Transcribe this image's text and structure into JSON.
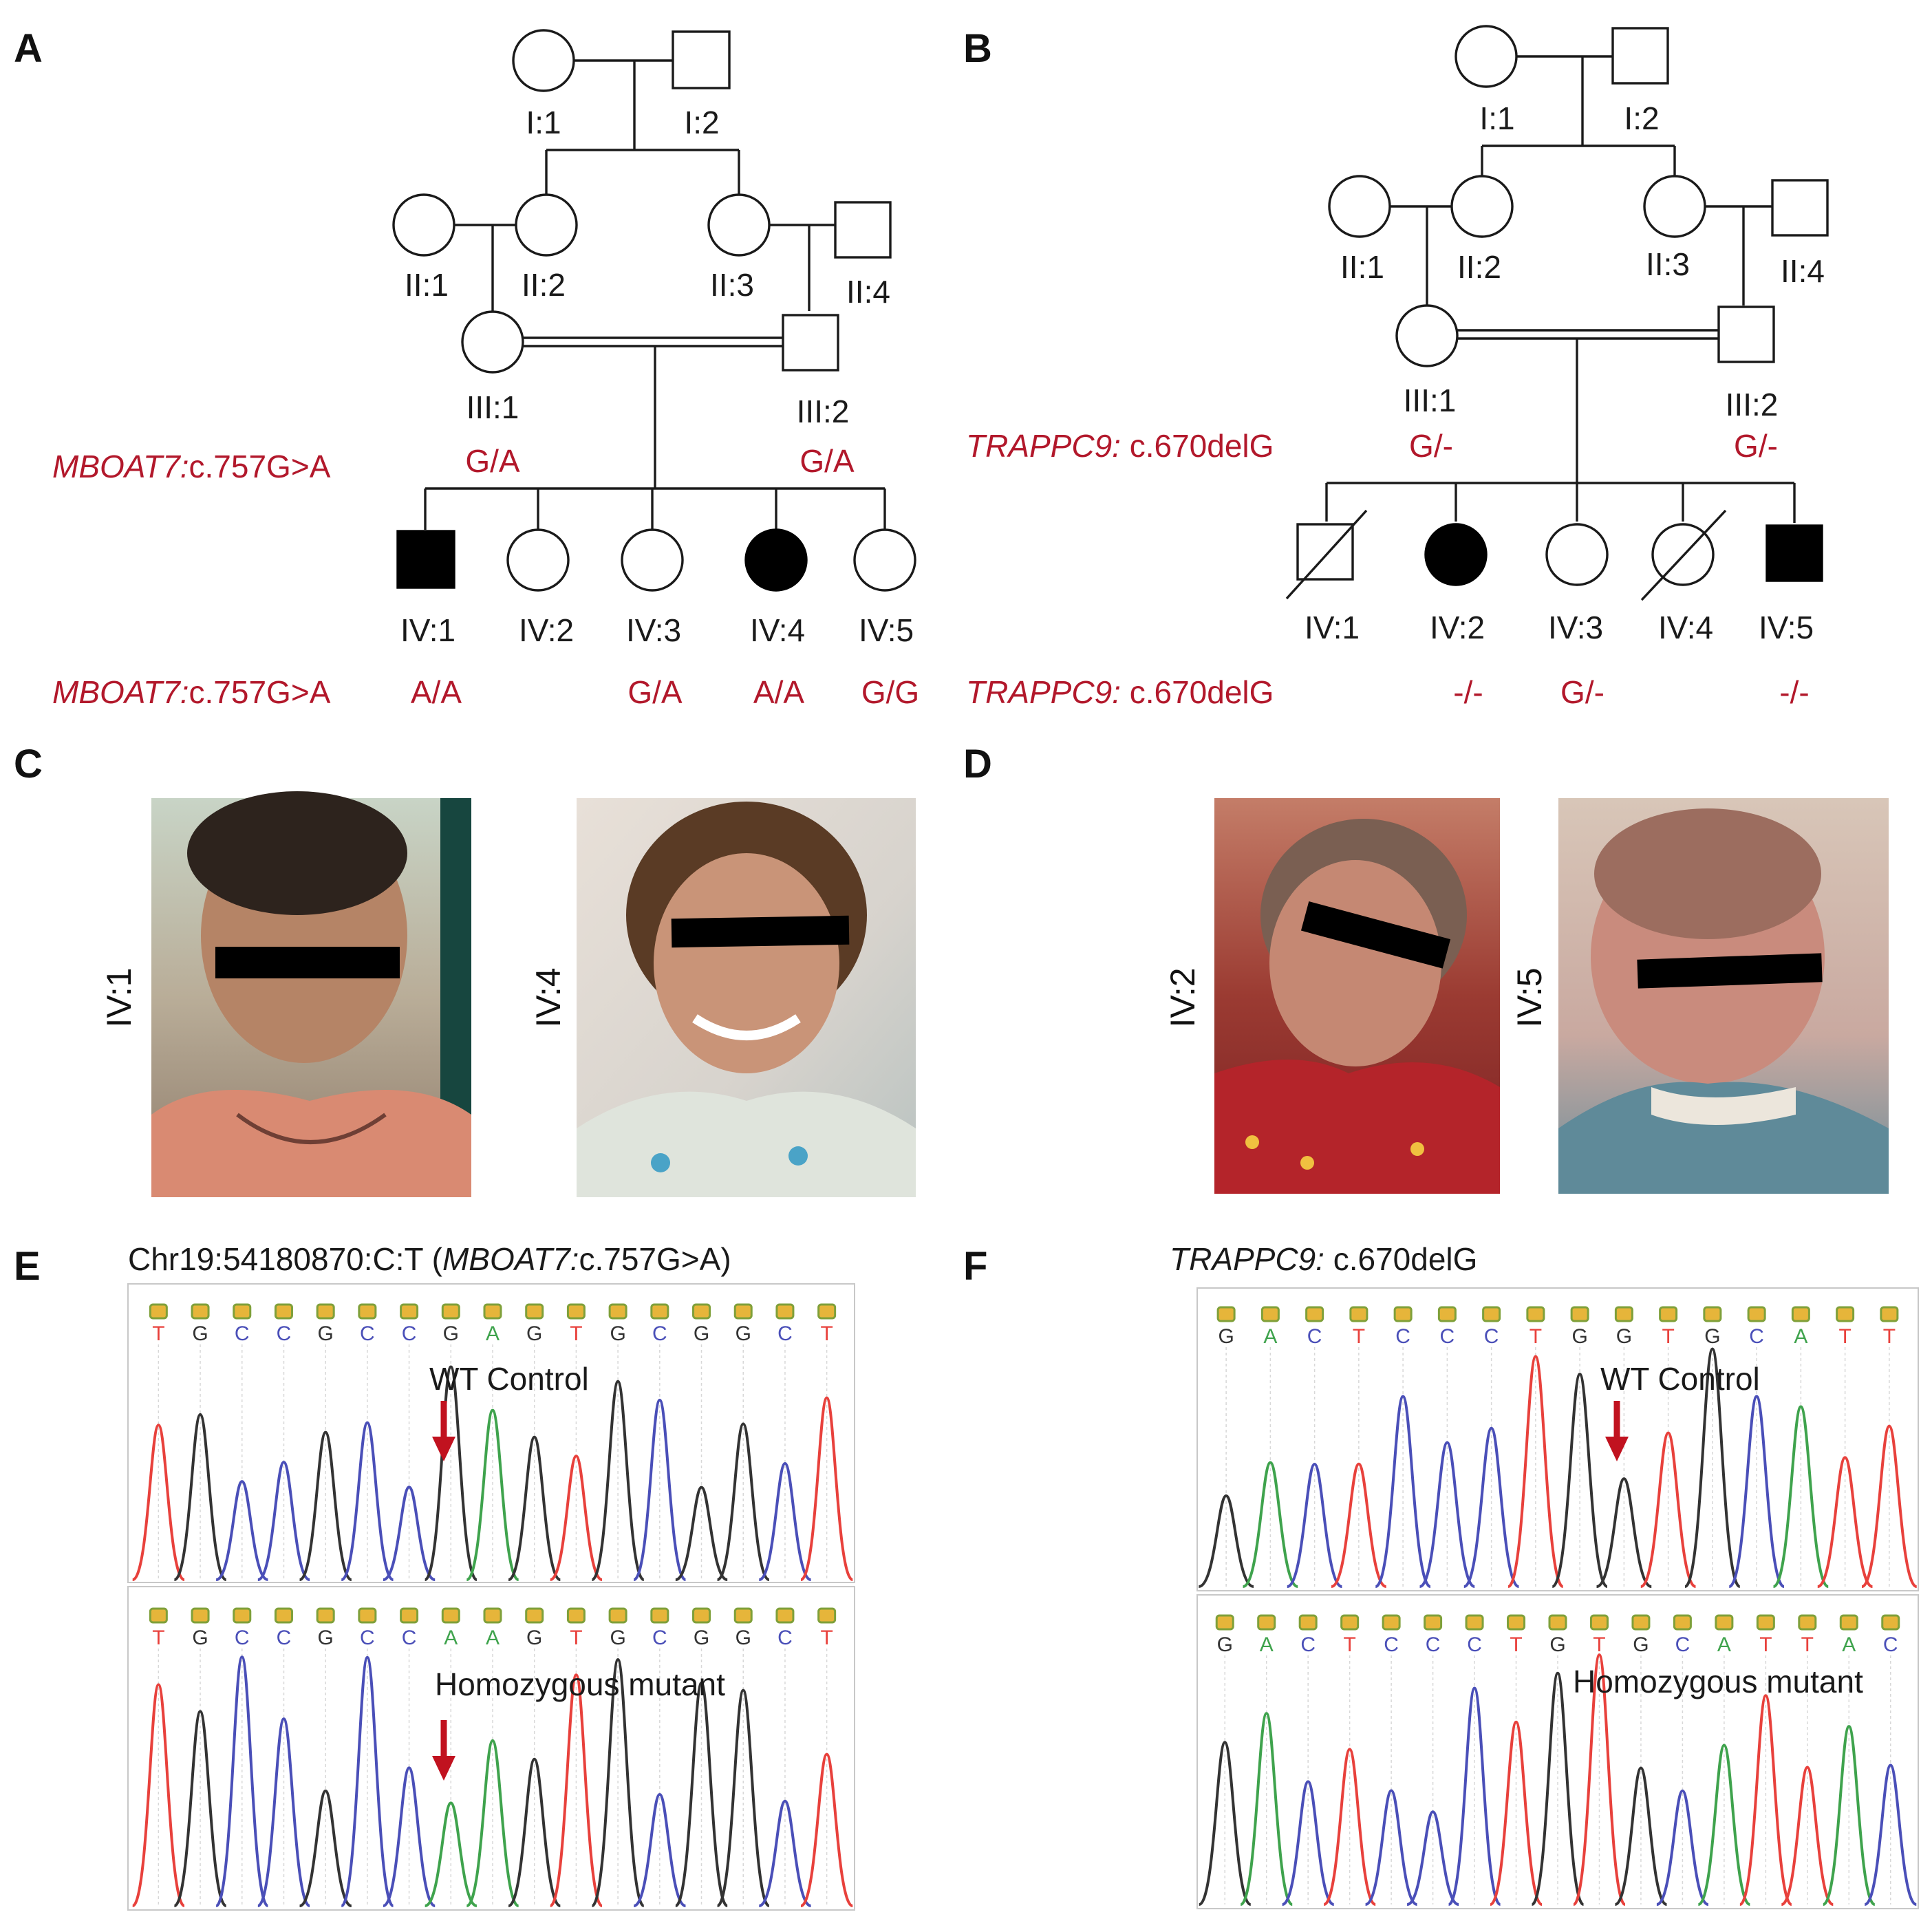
{
  "panels": {
    "a": {
      "letter": "A"
    },
    "b": {
      "letter": "B"
    },
    "c": {
      "letter": "C"
    },
    "d": {
      "letter": "D"
    },
    "e": {
      "letter": "E"
    },
    "f": {
      "letter": "F"
    }
  },
  "pedigree_a": {
    "gene": "MBOAT7:",
    "variant": "c.757G>A",
    "labels": {
      "I1": "I:1",
      "I2": "I:2",
      "II1": "II:1",
      "II2": "II:2",
      "II3": "II:3",
      "II4": "II:4",
      "III1": "III:1",
      "III2": "III:2",
      "IV1": "IV:1",
      "IV2": "IV:2",
      "IV3": "IV:3",
      "IV4": "IV:4",
      "IV5": "IV:5"
    },
    "genotypes": {
      "III1": "G/A",
      "III2": "G/A",
      "IV1": "A/A",
      "IV3": "G/A",
      "IV4": "A/A",
      "IV5": "G/G"
    }
  },
  "pedigree_b": {
    "gene": "TRAPPC9:",
    "variant": " c.670delG",
    "labels": {
      "I1": "I:1",
      "I2": "I:2",
      "II1": "II:1",
      "II2": "II:2",
      "II3": "II:3",
      "II4": "II:4",
      "III1": "III:1",
      "III2": "III:2",
      "IV1": "IV:1",
      "IV2": "IV:2",
      "IV3": "IV:3",
      "IV4": "IV:4",
      "IV5": "IV:5"
    },
    "genotypes": {
      "III1": "G/-",
      "III2": "G/-",
      "IV2": "-/-",
      "IV3": "G/-",
      "IV5": "-/-"
    }
  },
  "photos": {
    "c1": "IV:1",
    "c2": "IV:4",
    "d1": "IV:2",
    "d2": "IV:5"
  },
  "chromatograms": {
    "e": {
      "title_prefix": "Chr19:54180870:C:T",
      "gene": "MBOAT7:",
      "variant": "c.757G>A",
      "top_label": "WT Control",
      "bottom_label": "Homozygous mutant",
      "top_bases": [
        "T",
        "G",
        "C",
        "C",
        "G",
        "C",
        "C",
        "G",
        "A",
        "G",
        "T",
        "G",
        "C",
        "G",
        "G",
        "C",
        "T"
      ],
      "bottom_bases": [
        "T",
        "G",
        "C",
        "C",
        "G",
        "C",
        "C",
        "A",
        "A",
        "G",
        "T",
        "G",
        "C",
        "G",
        "G",
        "C",
        "T"
      ]
    },
    "f": {
      "gene": "TRAPPC9:",
      "variant": " c.670delG",
      "top_label": "WT Control",
      "bottom_label": "Homozygous mutant",
      "top_bases": [
        "G",
        "A",
        "C",
        "T",
        "C",
        "C",
        "C",
        "T",
        "G",
        "G",
        "T",
        "G",
        "C",
        "A",
        "T",
        "T"
      ],
      "bottom_bases": [
        "G",
        "A",
        "C",
        "T",
        "C",
        "C",
        "C",
        "T",
        "G",
        "T",
        "G",
        "C",
        "A",
        "T",
        "T",
        "A",
        "C"
      ]
    },
    "base_colors": {
      "A": "#3fa34d",
      "C": "#4a4fb8",
      "G": "#333333",
      "T": "#e8413c"
    }
  }
}
